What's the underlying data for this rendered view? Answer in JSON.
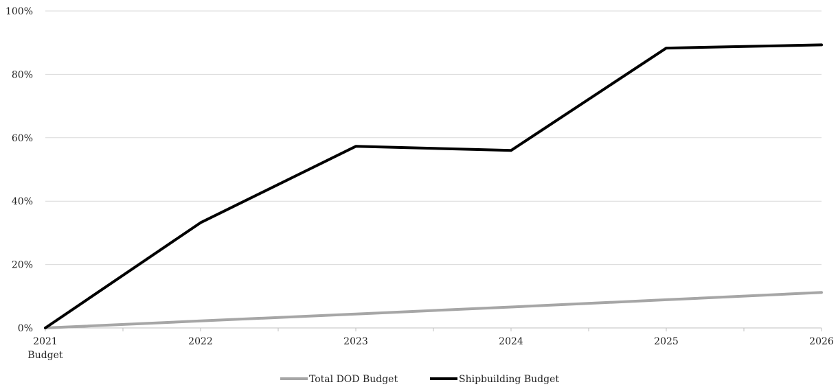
{
  "chart_data": {
    "type": "line",
    "title": "",
    "xlabel": "",
    "ylabel": "",
    "categories": [
      "2021 Budget",
      "2022",
      "2023",
      "2024",
      "2025",
      "2026"
    ],
    "x_tick_labels": [
      [
        "2021",
        "Budget"
      ],
      [
        "2022"
      ],
      [
        "2023"
      ],
      [
        "2024"
      ],
      [
        "2025"
      ],
      [
        "2026"
      ]
    ],
    "y_ticks": [
      0,
      20,
      40,
      60,
      80,
      100
    ],
    "y_tick_labels": [
      "0%",
      "20%",
      "40%",
      "60%",
      "80%",
      "100%"
    ],
    "ylim": [
      0,
      100
    ],
    "y_unit": "%",
    "grid": "horizontal",
    "legend_position": "bottom",
    "series": [
      {
        "name": "Total DOD Budget",
        "color": "#a6a6a6",
        "values": [
          0,
          2.2,
          4.4,
          6.6,
          8.9,
          11.2
        ]
      },
      {
        "name": "Shipbuilding Budget",
        "color": "#000000",
        "values": [
          0,
          33.2,
          57.3,
          56.0,
          88.3,
          89.3
        ]
      }
    ],
    "axis_color": "#bfbfbf",
    "grid_color": "#d9d9d9"
  }
}
